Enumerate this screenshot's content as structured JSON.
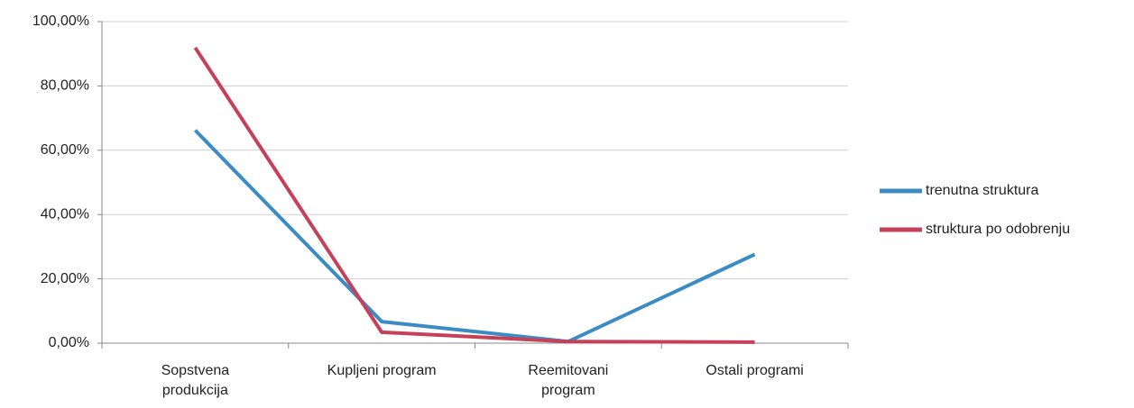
{
  "chart_data": {
    "type": "line",
    "categories": [
      "Sopstvena produkcija",
      "Kupljeni program",
      "Reemitovani program",
      "Ostali programi"
    ],
    "series": [
      {
        "name": "trenutna struktura",
        "color": "#3b8cc4",
        "values": [
          66.2,
          6.7,
          0.5,
          27.6
        ]
      },
      {
        "name": "struktura po odobrenju",
        "color": "#c6405a",
        "values": [
          91.9,
          3.4,
          0.5,
          0.3
        ]
      }
    ],
    "ylim": [
      0,
      100
    ],
    "yticks": [
      {
        "value": 0,
        "label": "0,00%"
      },
      {
        "value": 20,
        "label": "20,00%"
      },
      {
        "value": 40,
        "label": "40,00%"
      },
      {
        "value": 60,
        "label": "60,00%"
      },
      {
        "value": 80,
        "label": "80,00%"
      },
      {
        "value": 100,
        "label": "100,00%"
      }
    ],
    "grid": true,
    "legend": "right"
  }
}
